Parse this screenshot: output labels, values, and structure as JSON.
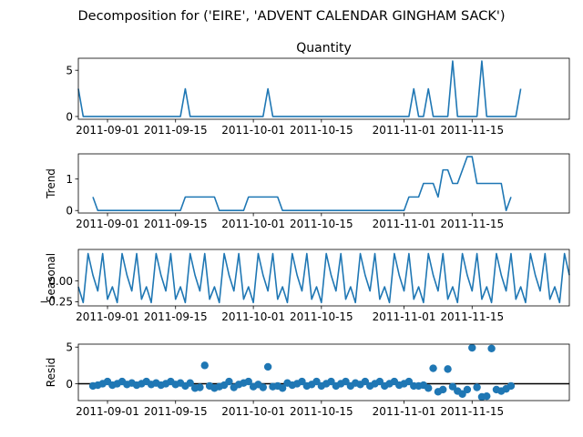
{
  "chart_data": {
    "type": "line",
    "title": "Decomposition for ('EIRE', 'ADVENT CALENDAR GINGHAM SACK')",
    "x_start": "2011-08-26",
    "x_end": "2011-12-05",
    "x_ticks": [
      "2011-09-01",
      "2011-09-15",
      "2011-10-01",
      "2011-10-15",
      "2011-11-01",
      "2011-11-15"
    ],
    "panels": [
      {
        "name": "observed",
        "title": "Quantity",
        "ylabel": "",
        "kind": "line",
        "ylim": [
          -0.3,
          6.3
        ],
        "yticks": [
          0,
          5
        ],
        "x": [
          "2011-08-26",
          "2011-08-27",
          "2011-09-16",
          "2011-09-17",
          "2011-09-18",
          "2011-10-03",
          "2011-10-04",
          "2011-10-05",
          "2011-11-02",
          "2011-11-03",
          "2011-11-04",
          "2011-11-05",
          "2011-11-06",
          "2011-11-07",
          "2011-11-10",
          "2011-11-11",
          "2011-11-12",
          "2011-11-16",
          "2011-11-17",
          "2011-11-18",
          "2011-11-24",
          "2011-11-25"
        ],
        "values": [
          3,
          0,
          0,
          3,
          0,
          0,
          3,
          0,
          0,
          3,
          0,
          0,
          3,
          0,
          0,
          6,
          0,
          0,
          6,
          0,
          0,
          3
        ]
      },
      {
        "name": "trend",
        "title": "",
        "ylabel": "Trend",
        "kind": "line",
        "ylim": [
          -0.08,
          1.8
        ],
        "yticks": [
          0,
          1
        ],
        "x": [
          "2011-08-29",
          "2011-08-30",
          "2011-09-16",
          "2011-09-17",
          "2011-09-23",
          "2011-09-24",
          "2011-09-29",
          "2011-09-30",
          "2011-10-06",
          "2011-10-07",
          "2011-11-01",
          "2011-11-02",
          "2011-11-04",
          "2011-11-05",
          "2011-11-07",
          "2011-11-08",
          "2011-11-09",
          "2011-11-10",
          "2011-11-11",
          "2011-11-12",
          "2011-11-14",
          "2011-11-15",
          "2011-11-16",
          "2011-11-17",
          "2011-11-21",
          "2011-11-22",
          "2011-11-23"
        ],
        "values": [
          0.43,
          0,
          0,
          0.43,
          0.43,
          0,
          0,
          0.43,
          0.43,
          0,
          0,
          0.43,
          0.43,
          0.86,
          0.86,
          0.43,
          1.29,
          1.29,
          0.86,
          0.86,
          1.71,
          1.71,
          0.86,
          0.86,
          0.86,
          0,
          0.43
        ]
      },
      {
        "name": "seasonal",
        "title": "",
        "ylabel": "Seasonal",
        "kind": "seasonal",
        "ylim": [
          -0.3,
          0.38
        ],
        "yticks": [
          0.0,
          -0.25
        ],
        "ytick_labels": [
          "0.00",
          "−0.25"
        ],
        "pattern": [
          -0.07,
          -0.26,
          0.33,
          0.07,
          -0.12,
          0.33,
          -0.22
        ],
        "start": "2011-08-26",
        "end": "2011-12-05"
      },
      {
        "name": "resid",
        "title": "",
        "ylabel": "Resid",
        "kind": "scatter",
        "ylim": [
          -2.3,
          5.4
        ],
        "yticks": [
          0,
          5
        ],
        "zero_line": true,
        "x": [
          "2011-08-29",
          "2011-08-30",
          "2011-08-31",
          "2011-09-01",
          "2011-09-02",
          "2011-09-03",
          "2011-09-04",
          "2011-09-05",
          "2011-09-06",
          "2011-09-07",
          "2011-09-08",
          "2011-09-09",
          "2011-09-10",
          "2011-09-11",
          "2011-09-12",
          "2011-09-13",
          "2011-09-14",
          "2011-09-15",
          "2011-09-16",
          "2011-09-17",
          "2011-09-18",
          "2011-09-19",
          "2011-09-20",
          "2011-09-21",
          "2011-09-22",
          "2011-09-23",
          "2011-09-24",
          "2011-09-25",
          "2011-09-26",
          "2011-09-27",
          "2011-09-28",
          "2011-09-29",
          "2011-09-30",
          "2011-10-01",
          "2011-10-02",
          "2011-10-03",
          "2011-10-04",
          "2011-10-05",
          "2011-10-06",
          "2011-10-07",
          "2011-10-08",
          "2011-10-09",
          "2011-10-10",
          "2011-10-11",
          "2011-10-12",
          "2011-10-13",
          "2011-10-14",
          "2011-10-15",
          "2011-10-16",
          "2011-10-17",
          "2011-10-18",
          "2011-10-19",
          "2011-10-20",
          "2011-10-21",
          "2011-10-22",
          "2011-10-23",
          "2011-10-24",
          "2011-10-25",
          "2011-10-26",
          "2011-10-27",
          "2011-10-28",
          "2011-10-29",
          "2011-10-30",
          "2011-10-31",
          "2011-11-01",
          "2011-11-02",
          "2011-11-03",
          "2011-11-04",
          "2011-11-05",
          "2011-11-06",
          "2011-11-07",
          "2011-11-08",
          "2011-11-09",
          "2011-11-10",
          "2011-11-11",
          "2011-11-12",
          "2011-11-13",
          "2011-11-14",
          "2011-11-15",
          "2011-11-16",
          "2011-11-17",
          "2011-11-18",
          "2011-11-19",
          "2011-11-20",
          "2011-11-21",
          "2011-11-22",
          "2011-11-23"
        ],
        "values": [
          -0.3,
          -0.2,
          0.0,
          0.3,
          -0.2,
          0.0,
          0.3,
          -0.1,
          0.1,
          -0.2,
          0.0,
          0.3,
          -0.1,
          0.1,
          -0.2,
          0.0,
          0.3,
          -0.1,
          0.1,
          -0.3,
          0.1,
          -0.6,
          -0.5,
          2.5,
          -0.3,
          -0.6,
          -0.4,
          -0.2,
          0.3,
          -0.5,
          -0.1,
          0.1,
          0.3,
          -0.4,
          -0.1,
          -0.5,
          2.3,
          -0.4,
          -0.3,
          -0.6,
          0.1,
          -0.2,
          0.0,
          0.3,
          -0.3,
          -0.1,
          0.3,
          -0.3,
          0.0,
          0.3,
          -0.3,
          0.0,
          0.3,
          -0.3,
          0.1,
          -0.1,
          0.3,
          -0.3,
          0.0,
          0.3,
          -0.3,
          0.0,
          0.3,
          -0.2,
          0.0,
          0.3,
          -0.3,
          -0.3,
          -0.2,
          -0.6,
          2.1,
          -1.1,
          -0.8,
          2.0,
          -0.4,
          -1.0,
          -1.4,
          -0.8,
          4.9,
          -0.5,
          -1.8,
          -1.7,
          4.8,
          -0.8,
          -1.0,
          -0.7,
          -0.3
        ]
      }
    ]
  }
}
